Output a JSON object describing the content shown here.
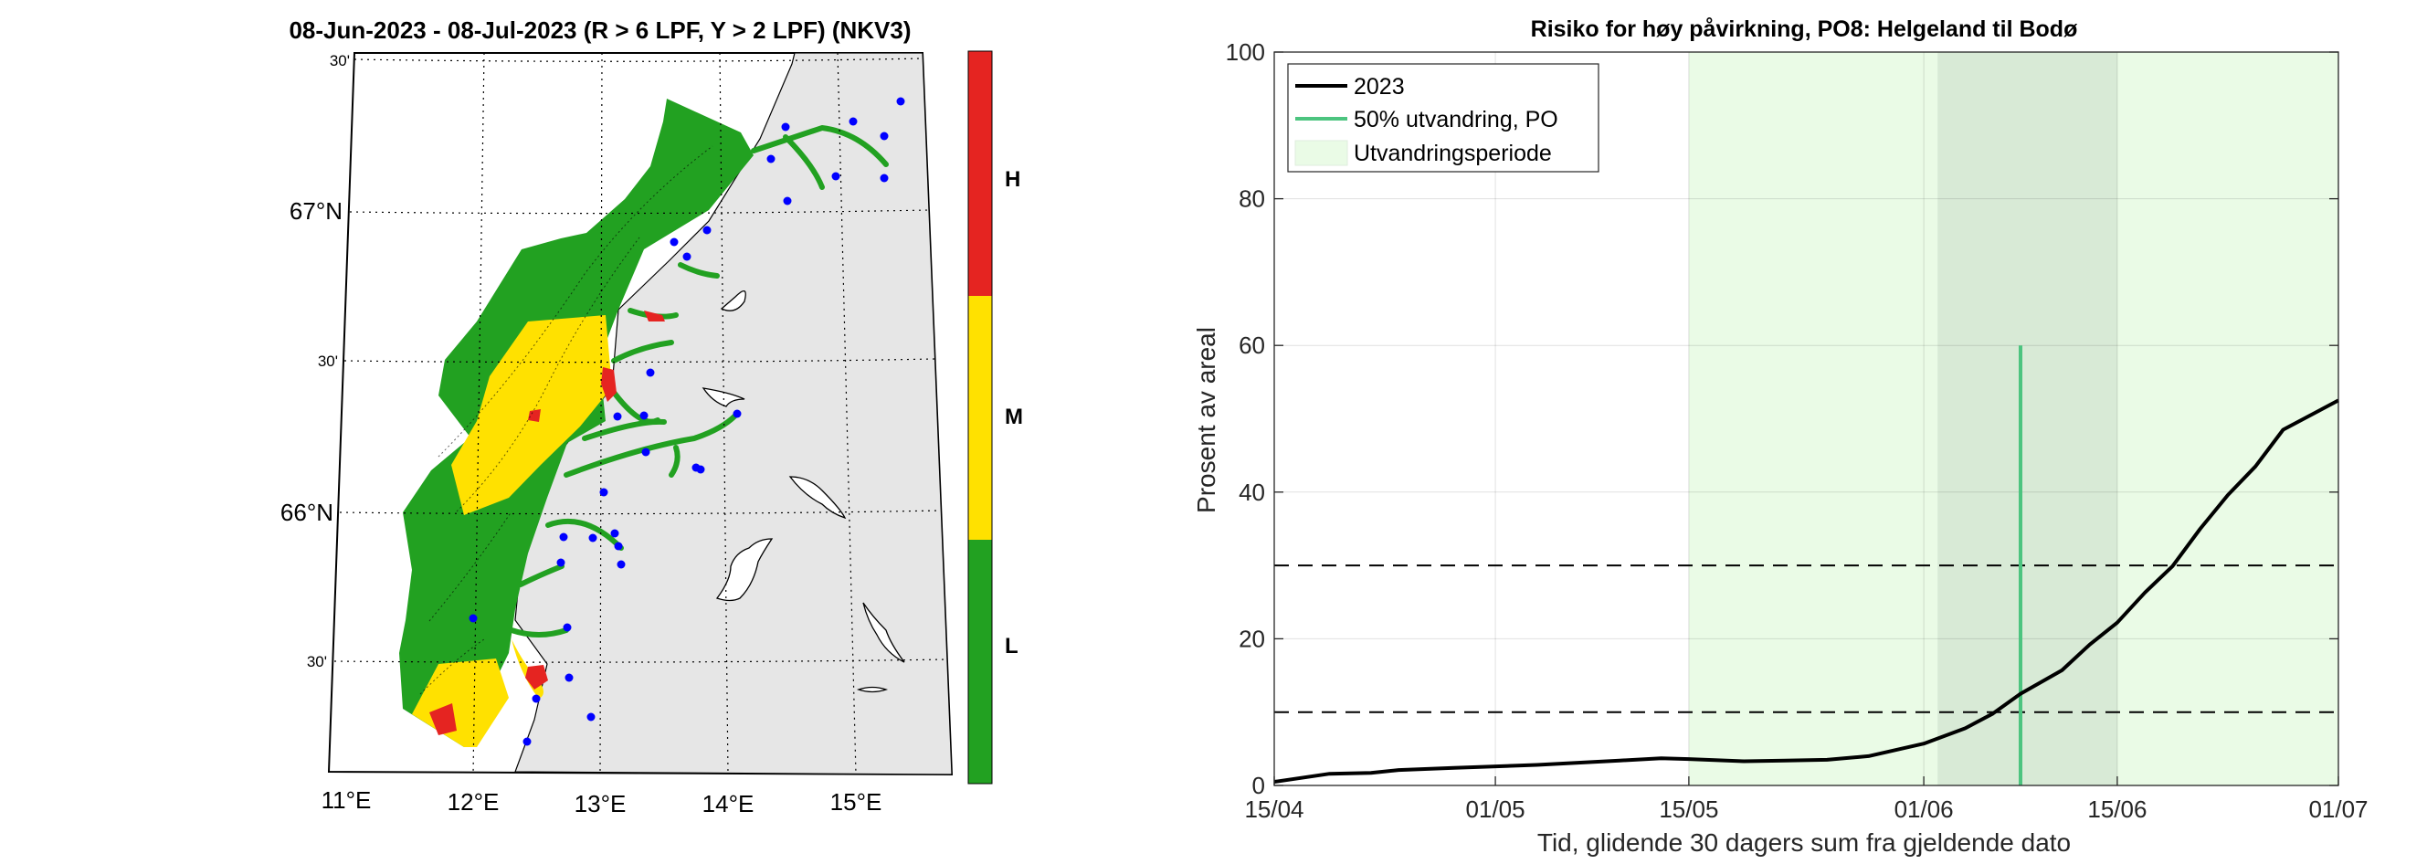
{
  "map_panel": {
    "title": "08-Jun-2023  - 08-Jul-2023  (R > 6 LPF, Y > 2 LPF) (NKV3)",
    "lat_labels": [
      "30'",
      "67°N",
      "30'",
      "66°N",
      "30'"
    ],
    "lon_labels": [
      "11°E",
      "12°E",
      "13°E",
      "14°E",
      "15°E"
    ],
    "colorbar": {
      "labels": [
        "H",
        "M",
        "L"
      ],
      "colors": {
        "H": "#e52421",
        "M": "#ffe100",
        "L": "#22a121"
      }
    },
    "colors": {
      "land": "#e6e6e6",
      "sea": "#ffffff",
      "stations": "#0000ff"
    }
  },
  "chart_data": {
    "type": "line",
    "title": "Risiko for høy påvirkning, PO8: Helgeland til Bodø",
    "xlabel": "Tid, glidende 30 dagers sum fra gjeldende dato",
    "ylabel": "Prosent av areal",
    "xlim": [
      "15/04",
      "01/07"
    ],
    "ylim": [
      0,
      100
    ],
    "xticks": [
      "15/04",
      "01/05",
      "15/05",
      "01/06",
      "15/06",
      "01/07"
    ],
    "yticks": [
      "0",
      "20",
      "40",
      "60",
      "80",
      "100"
    ],
    "grid": true,
    "legend": {
      "placement": "top-left",
      "entries": [
        "2023",
        "50% utvandring, PO",
        "Utvandringsperiode"
      ]
    },
    "series": [
      {
        "name": "2023",
        "color": "#000000",
        "x": [
          "15/04",
          "19/04",
          "22/04",
          "24/04",
          "28/04",
          "04/05",
          "10/05",
          "13/05",
          "15/05",
          "19/05",
          "22/05",
          "25/05",
          "28/05",
          "01/06",
          "04/06",
          "06/06",
          "08/06",
          "11/06",
          "13/06",
          "15/06",
          "17/06",
          "19/06",
          "21/06",
          "23/06",
          "25/06",
          "27/06",
          "01/07"
        ],
        "y": [
          0.5,
          1.6,
          1.7,
          2.1,
          2.4,
          2.8,
          3.4,
          3.7,
          3.6,
          3.3,
          3.4,
          3.5,
          4.0,
          5.7,
          7.8,
          9.8,
          12.5,
          15.7,
          19.2,
          22.2,
          26.3,
          29.9,
          35.0,
          39.6,
          43.5,
          48.5,
          52.5
        ]
      }
    ],
    "vertical_line": {
      "name": "50% utvandring, PO",
      "x": "08/06",
      "y_top": 60,
      "color": "#4cc47f"
    },
    "shaded_periods": [
      {
        "name": "Utvandringsperiode",
        "from": "15/05",
        "to": "01/07",
        "color": "#eafbe6"
      },
      {
        "from": "02/06",
        "to": "15/06",
        "color": "#d8ead6"
      }
    ],
    "hlines": [
      10,
      30
    ]
  }
}
